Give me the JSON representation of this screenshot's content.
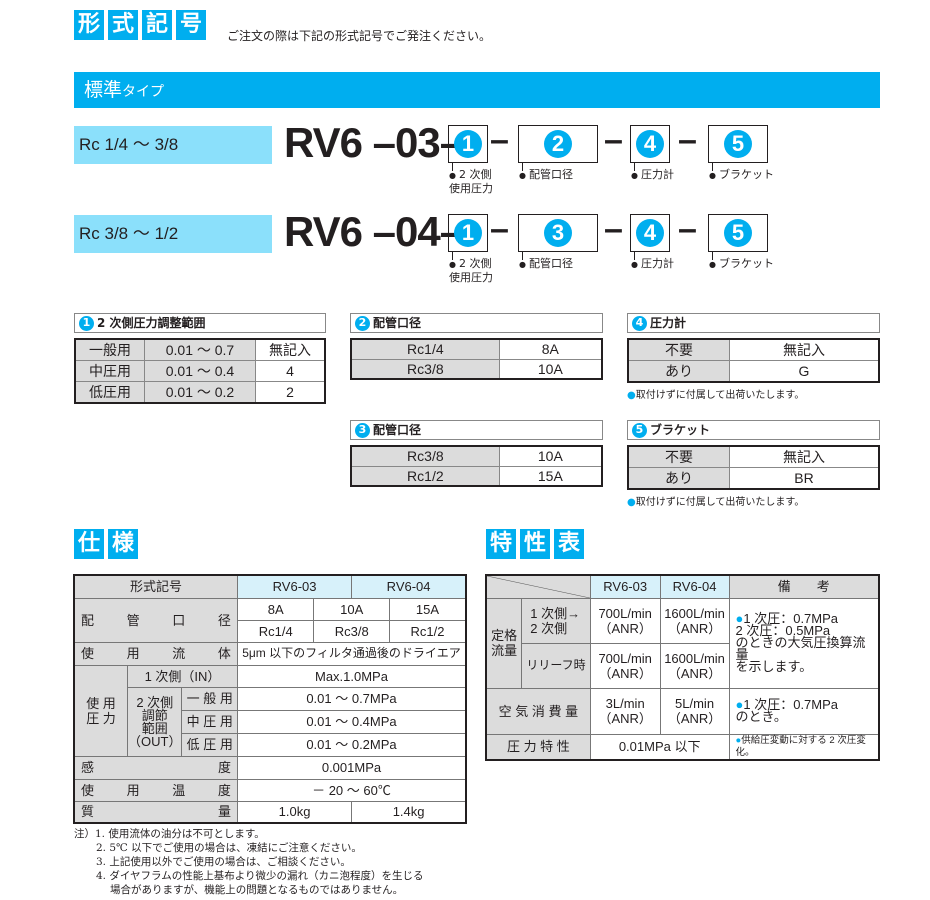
{
  "header": {
    "title_chars": [
      "形",
      "式",
      "記",
      "号"
    ],
    "instruction": "ご注文の際は下記の形式記号でご発注ください。"
  },
  "standard_bar": {
    "main": "標準",
    "sub": "タイプ"
  },
  "models": [
    {
      "range": "Rc 1/4 ～ 3/8",
      "prefix": "RV6",
      "code": "03",
      "slots": [
        "1",
        "2",
        "4",
        "5"
      ],
      "labels": [
        "2 次側\n使用圧力",
        "配管口径",
        "圧力計",
        "ブラケット"
      ]
    },
    {
      "range": "Rc 3/8 ～ 1/2",
      "prefix": "RV6",
      "code": "04",
      "slots": [
        "1",
        "3",
        "4",
        "5"
      ],
      "labels": [
        "2 次側\n使用圧力",
        "配管口径",
        "圧力計",
        "ブラケット"
      ]
    }
  ],
  "dash": "–",
  "option_tables": {
    "t1": {
      "num": "1",
      "title": "2 次側圧力調整範囲",
      "rows": [
        [
          "一般用",
          "0.01 ～ 0.7",
          "無記入"
        ],
        [
          "中圧用",
          "0.01 ～ 0.4",
          "4"
        ],
        [
          "低圧用",
          "0.01 ～ 0.2",
          "2"
        ]
      ]
    },
    "t2": {
      "num": "2",
      "title": "配管口径",
      "rows": [
        [
          "Rc1/4",
          "8A"
        ],
        [
          "Rc3/8",
          "10A"
        ]
      ]
    },
    "t3": {
      "num": "3",
      "title": "配管口径",
      "rows": [
        [
          "Rc3/8",
          "10A"
        ],
        [
          "Rc1/2",
          "15A"
        ]
      ]
    },
    "t4": {
      "num": "4",
      "title": "圧力計",
      "rows": [
        [
          "不要",
          "無記入"
        ],
        [
          "あり",
          "G"
        ]
      ],
      "note": "取付けずに付属して出荷いたします。"
    },
    "t5": {
      "num": "5",
      "title": "ブラケット",
      "rows": [
        [
          "不要",
          "無記入"
        ],
        [
          "あり",
          "BR"
        ]
      ],
      "note": "取付けずに付属して出荷いたします。"
    }
  },
  "spec": {
    "heading_chars": [
      "仕",
      "様"
    ],
    "model_label": "形式記号",
    "models": [
      "RV6-03",
      "RV6-04"
    ],
    "port_label": [
      "配",
      "管",
      "口",
      "径"
    ],
    "ports_a": [
      "8A",
      "10A",
      "15A"
    ],
    "ports_rc": [
      "Rc1/4",
      "Rc3/8",
      "Rc1/2"
    ],
    "fluid_label": [
      "使",
      "用",
      "流",
      "体"
    ],
    "fluid": "5μm 以下のフィルタ通過後のドライエア",
    "pressure_label": "使 用\n圧 力",
    "primary_label": "1 次側（IN）",
    "primary": "Max.1.0MPa",
    "secondary_label": "2 次側\n調節\n範囲\n（OUT）",
    "secondary_rows": [
      [
        "一 般 用",
        "0.01 ～ 0.7MPa"
      ],
      [
        "中 圧 用",
        "0.01 ～ 0.4MPa"
      ],
      [
        "低 圧 用",
        "0.01 ～ 0.2MPa"
      ]
    ],
    "sens_label": [
      "感",
      "度"
    ],
    "sensitivity": "0.001MPa",
    "temp_label": [
      "使",
      "用",
      "温",
      "度"
    ],
    "temperature": "－ 20 ～ 60℃",
    "mass_label": [
      "質",
      "量"
    ],
    "mass": [
      "1.0kg",
      "1.4kg"
    ],
    "notes": [
      "注）1. 使用流体の油分は不可とします。",
      "2. 5℃ 以下でご使用の場合は、凍結にご注意ください。",
      "3. 上記使用以外でご使用の場合は、ご相談ください。",
      "4. ダイヤフラムの性能上基布より微少の漏れ（カニ泡程度）を生じる",
      "場合がありますが、機能上の問題となるものではありません。"
    ]
  },
  "characteristics": {
    "heading_chars": [
      "特",
      "性",
      "表"
    ],
    "models": [
      "RV6-03",
      "RV6-04"
    ],
    "remarks_label": "備　　考",
    "rated_label": "定格\n流量",
    "rows": [
      {
        "label": "1 次側→\n2 次側",
        "v1": "700L/min\n（ANR）",
        "v2": "1600L/min\n（ANR）"
      },
      {
        "label": "リリーフ時",
        "v1": "700L/min\n（ANR）",
        "v2": "1600L/min\n（ANR）"
      }
    ],
    "rated_remark": "1 次圧：0.7MPa\n2 次圧：0.5MPa\nのときの大気圧換算流量\nを示します。",
    "air_label": "空 気 消 費 量",
    "air": [
      "3L/min\n（ANR）",
      "5L/min\n（ANR）"
    ],
    "air_remark": "1 次圧：0.7MPa\nのとき。",
    "pc_label": "圧 力 特 性",
    "pc": "0.01MPa 以下",
    "pc_remark": "供給圧変動に対する 2 次圧変化。"
  },
  "colors": {
    "accent": "#00aeef",
    "range_bg": "#8be0fb",
    "cell_gray": "#dcdcdc",
    "header_blue": "#d7f1fa"
  }
}
